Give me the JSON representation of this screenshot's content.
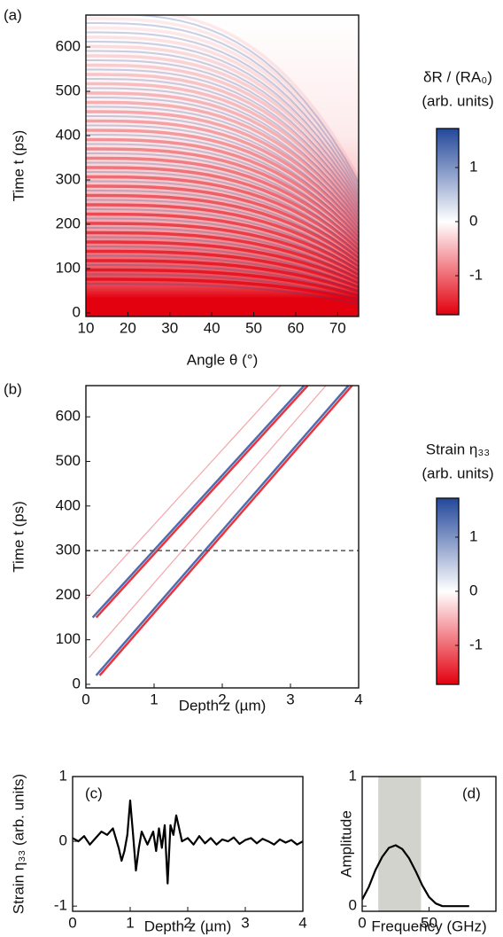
{
  "chart_data": [
    {
      "type": "heatmap",
      "panel_label": "(a)",
      "x_label": "Angle θ (°)",
      "y_label": "Time t (ps)",
      "xlim": [
        10,
        75
      ],
      "xticks": [
        10,
        20,
        30,
        40,
        50,
        60,
        70
      ],
      "ylim": [
        -8,
        672
      ],
      "yticks": [
        0,
        100,
        200,
        300,
        400,
        500,
        600
      ],
      "colorbar": {
        "label": [
          "δR / (RA₀)",
          "(arb. units)"
        ],
        "lim": [
          -1.72,
          1.72
        ],
        "ticks": [
          -1,
          0,
          1
        ],
        "colors": [
          "#e3000f",
          "#ffffff",
          "#23479a"
        ]
      }
    },
    {
      "type": "heatmap",
      "panel_label": "(b)",
      "x_label": "Depth z (µm)",
      "y_label": "Time t (ps)",
      "xlim": [
        0,
        4
      ],
      "xticks": [
        0,
        1,
        2,
        3,
        4
      ],
      "ylim": [
        -8,
        670
      ],
      "yticks": [
        0,
        100,
        200,
        300,
        400,
        500,
        600
      ],
      "hline": 300,
      "colorbar": {
        "label": [
          "Strain η₃₃",
          "(arb. units)"
        ],
        "lim": [
          -1.72,
          1.72
        ],
        "ticks": [
          -1,
          0,
          1
        ],
        "colors": [
          "#e3000f",
          "#ffffff",
          "#23479a"
        ]
      }
    },
    {
      "type": "line",
      "panel_label": "(c)",
      "x_label": "Depth z (µm)",
      "y_label": "Strain η₃₃ (arb. units)",
      "xlim": [
        0,
        4
      ],
      "xticks": [
        0,
        1,
        2,
        3,
        4
      ],
      "ylim": [
        -1.08,
        1
      ],
      "yticks": [
        -1,
        0,
        1
      ],
      "x": [
        0,
        0.1,
        0.2,
        0.3,
        0.4,
        0.5,
        0.6,
        0.7,
        0.8,
        0.85,
        0.9,
        0.95,
        1.0,
        1.05,
        1.1,
        1.15,
        1.2,
        1.3,
        1.4,
        1.45,
        1.5,
        1.55,
        1.6,
        1.65,
        1.7,
        1.75,
        1.8,
        1.85,
        1.9,
        2.0,
        2.1,
        2.2,
        2.3,
        2.4,
        2.5,
        2.6,
        2.7,
        2.8,
        2.9,
        3.0,
        3.1,
        3.2,
        3.3,
        3.4,
        3.5,
        3.6,
        3.7,
        3.8,
        3.9,
        4.0
      ],
      "values": [
        0.05,
        0.0,
        0.08,
        -0.05,
        0.05,
        0.15,
        0.1,
        0.2,
        -0.1,
        -0.3,
        -0.15,
        0.1,
        0.63,
        0.1,
        -0.45,
        -0.1,
        0.15,
        -0.05,
        0.15,
        -0.15,
        0.2,
        -0.1,
        0.25,
        -0.65,
        0.25,
        0.1,
        0.4,
        0.2,
        0.0,
        0.05,
        -0.05,
        0.08,
        -0.03,
        0.05,
        -0.05,
        0.03,
        0.0,
        0.06,
        -0.04,
        0.02,
        0.05,
        -0.03,
        0.04,
        0.0,
        -0.05,
        0.03,
        -0.02,
        0.02,
        -0.05,
        0.0
      ],
      "color": "#000000"
    },
    {
      "type": "line",
      "panel_label": "(d)",
      "x_label": "Frequency (GHz)",
      "y_label": "Amplitude",
      "xlim": [
        0,
        100
      ],
      "xticks": [
        0,
        50
      ],
      "ylim": [
        -0.04,
        1
      ],
      "yticks": [
        0,
        1
      ],
      "x": [
        0,
        5,
        10,
        15,
        20,
        25,
        30,
        35,
        40,
        45,
        50,
        55,
        60,
        65,
        70,
        75,
        80
      ],
      "values": [
        0.05,
        0.15,
        0.28,
        0.38,
        0.45,
        0.47,
        0.44,
        0.37,
        0.27,
        0.16,
        0.07,
        0.02,
        0,
        0,
        0,
        0,
        0
      ],
      "span": [
        12,
        44
      ],
      "span_color": "#d3d3ce",
      "color": "#000000"
    }
  ]
}
